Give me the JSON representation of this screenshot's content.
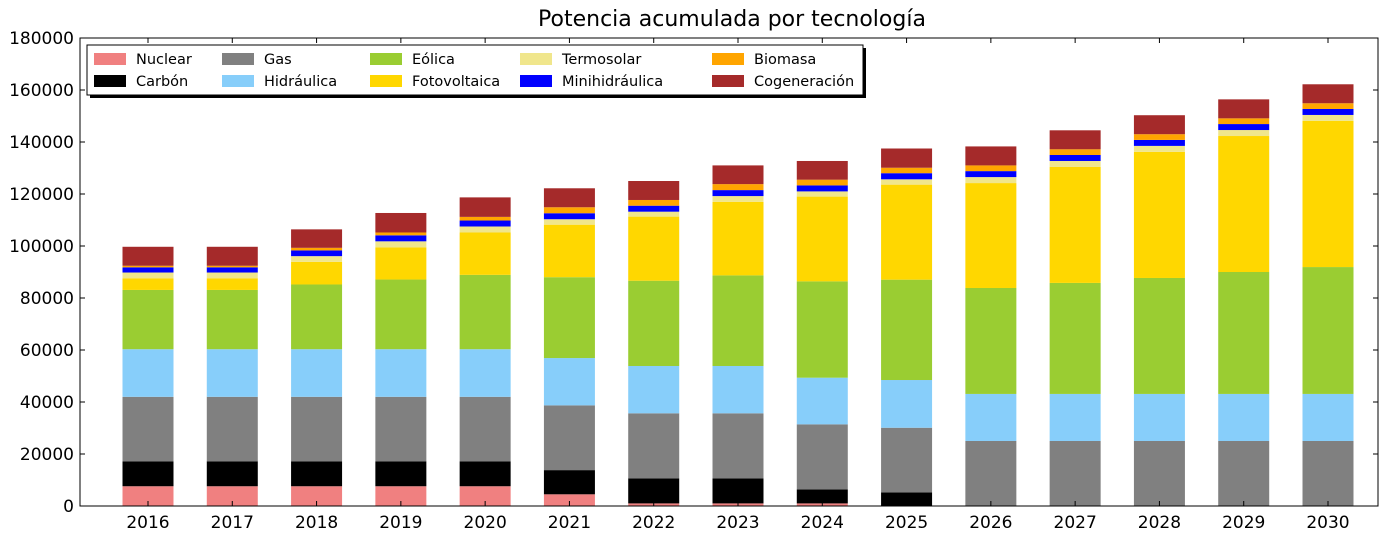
{
  "chart_data": {
    "type": "bar",
    "stacked": true,
    "title": "Potencia acumulada por tecnología",
    "xlabel": "",
    "ylabel": "",
    "ylim": [
      0,
      180000
    ],
    "yticks": [
      0,
      20000,
      40000,
      60000,
      80000,
      100000,
      120000,
      140000,
      160000,
      180000
    ],
    "grid": false,
    "legend_placement": "top-left",
    "categories": [
      "2016",
      "2017",
      "2018",
      "2019",
      "2020",
      "2021",
      "2022",
      "2023",
      "2024",
      "2025",
      "2026",
      "2027",
      "2028",
      "2029",
      "2030"
    ],
    "series": [
      {
        "name": "Nuclear",
        "color": "#f08080",
        "values": [
          7600,
          7600,
          7600,
          7600,
          7600,
          4500,
          1000,
          1000,
          1000,
          0,
          0,
          0,
          0,
          0,
          0
        ]
      },
      {
        "name": "Carbón",
        "color": "#000000",
        "values": [
          9600,
          9600,
          9600,
          9600,
          9600,
          9300,
          9650,
          9650,
          5400,
          5250,
          0,
          0,
          0,
          0,
          0
        ]
      },
      {
        "name": "Gas",
        "color": "#808080",
        "values": [
          24800,
          24800,
          24800,
          24800,
          24800,
          24900,
          25000,
          25000,
          25000,
          24850,
          25000,
          25000,
          25000,
          25000,
          25000
        ]
      },
      {
        "name": "Hidráulica",
        "color": "#87cefa",
        "values": [
          18300,
          18300,
          18300,
          18300,
          18300,
          18200,
          18200,
          18200,
          17950,
          18350,
          18100,
          18100,
          18100,
          18100,
          18100
        ]
      },
      {
        "name": "Eólica",
        "color": "#9acd32",
        "values": [
          22800,
          22800,
          24900,
          26800,
          28600,
          31100,
          32800,
          34850,
          37050,
          38600,
          40750,
          42700,
          44600,
          46900,
          48800
        ]
      },
      {
        "name": "Fotovoltaica",
        "color": "#ffd700",
        "values": [
          4500,
          4500,
          8700,
          12400,
          16300,
          20200,
          24650,
          28300,
          32600,
          36550,
          40350,
          44600,
          48500,
          52300,
          56200
        ]
      },
      {
        "name": "Termosolar",
        "color": "#f0e68c",
        "values": [
          2200,
          2200,
          2200,
          2300,
          2300,
          2100,
          1900,
          2200,
          2000,
          2050,
          2300,
          2300,
          2300,
          2300,
          2300
        ]
      },
      {
        "name": "Minihidráulica",
        "color": "#0000ff",
        "values": [
          2000,
          2000,
          2200,
          2300,
          2300,
          2300,
          2300,
          2300,
          2300,
          2350,
          2300,
          2300,
          2300,
          2300,
          2300
        ]
      },
      {
        "name": "Biomasa",
        "color": "#ffa500",
        "values": [
          600,
          600,
          1000,
          1100,
          1400,
          2300,
          2200,
          2300,
          2200,
          2100,
          2200,
          2200,
          2200,
          2200,
          2200
        ]
      },
      {
        "name": "Cogeneración",
        "color": "#a52a2a",
        "values": [
          7300,
          7300,
          7100,
          7500,
          7500,
          7300,
          7300,
          7200,
          7200,
          7400,
          7300,
          7300,
          7300,
          7300,
          7300
        ]
      }
    ]
  }
}
